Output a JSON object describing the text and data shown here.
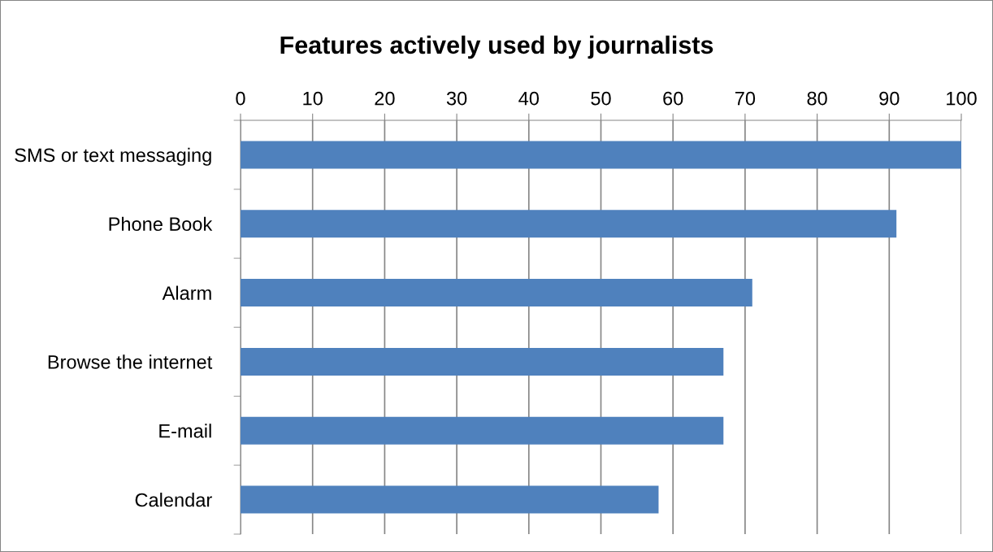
{
  "chart_data": {
    "type": "bar",
    "orientation": "horizontal",
    "title": "Features actively used by journalists",
    "categories": [
      "SMS or text messaging",
      "Phone Book",
      "Alarm",
      "Browse the internet",
      "E-mail",
      "Calendar"
    ],
    "values": [
      100,
      91,
      71,
      67,
      67,
      58
    ],
    "color": "#4f81bd",
    "xlim": [
      0,
      100
    ],
    "xticks": [
      0,
      10,
      20,
      30,
      40,
      50,
      60,
      70,
      80,
      90,
      100
    ],
    "grid": "x",
    "legend": false
  }
}
